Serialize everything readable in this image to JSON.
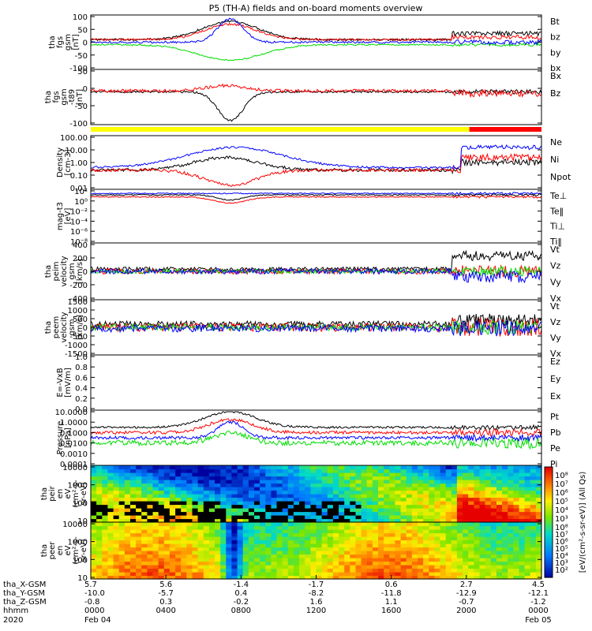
{
  "title": "P5 (TH-A) fields and on-board moments overview",
  "colors": {
    "black": "#000000",
    "red": "#ff0000",
    "green": "#00dd00",
    "blue": "#0000ff",
    "yellow": "#ffff00"
  },
  "bar_segments": [
    {
      "from": 0.0,
      "to": 0.84,
      "color": "#ffff00"
    },
    {
      "from": 0.84,
      "to": 1.0,
      "color": "#ff0000"
    }
  ],
  "chart_data": [
    {
      "type": "line",
      "ylabel": [
        "tha",
        "fgs",
        "gsm",
        "[nT]"
      ],
      "yticks": [
        "100",
        "50",
        "0",
        "-50",
        "-100"
      ],
      "legend": [
        {
          "name": "Bt",
          "color": "#000000"
        },
        {
          "name": "bz",
          "color": "#ff0000"
        },
        {
          "name": "by",
          "color": "#00dd00"
        },
        {
          "name": "bx",
          "color": "#0000ff"
        }
      ]
    },
    {
      "type": "line",
      "ylabel": [
        "tha",
        "fgs",
        "gsm",
        "-t89",
        "[nT]"
      ],
      "yticks": [
        "50",
        "0",
        "-50",
        "-100"
      ],
      "legend": [
        {
          "name": "Bx",
          "color": "#000000"
        },
        {
          "name": "Bz",
          "color": "#ff0000"
        }
      ]
    },
    {
      "type": "line",
      "ylabel": [
        "Density",
        "[cm-3]"
      ],
      "yticks": [
        "100.00",
        "10.00",
        "1.00",
        "0.10",
        "0.01"
      ],
      "legend": [
        {
          "name": "Ne",
          "color": "#ff0000"
        },
        {
          "name": "Ni",
          "color": "#000000"
        },
        {
          "name": "Npot",
          "color": "#0000ff"
        }
      ]
    },
    {
      "type": "line",
      "ylabel": [
        "mag-t3",
        "[eV]"
      ],
      "yticks": [
        "10²",
        "10⁰",
        "10⁻²",
        "10⁻⁴",
        "10⁻⁶",
        "10⁻⁸"
      ],
      "legend": [
        {
          "name": "Te⊥",
          "color": "#ff0000"
        },
        {
          "name": "Te‖",
          "color": "#000000"
        },
        {
          "name": "Ti⊥",
          "color": "#00dd00"
        },
        {
          "name": "Ti‖",
          "color": "#00dd00"
        }
      ]
    },
    {
      "type": "line",
      "ylabel": [
        "tha",
        "peim",
        "velocity",
        "gsm",
        "[km/s]"
      ],
      "yticks": [
        "400",
        "200",
        "0",
        "-200",
        "-400"
      ],
      "legend": [
        {
          "name": "Vt",
          "color": "#000000"
        },
        {
          "name": "Vz",
          "color": "#ff0000"
        },
        {
          "name": "Vy",
          "color": "#00dd00"
        },
        {
          "name": "Vx",
          "color": "#0000ff"
        }
      ]
    },
    {
      "type": "line",
      "ylabel": [
        "tha",
        "peem",
        "velocity",
        "gsm",
        "[km/s]"
      ],
      "yticks": [
        "1500",
        "1000",
        "500",
        "0",
        "-500",
        "-1000",
        "-1500"
      ],
      "legend": [
        {
          "name": "Vt",
          "color": "#000000"
        },
        {
          "name": "Vz",
          "color": "#ff0000"
        },
        {
          "name": "Vy",
          "color": "#00dd00"
        },
        {
          "name": "Vx",
          "color": "#0000ff"
        }
      ]
    },
    {
      "type": "line",
      "ylabel": [
        "E=-VxB",
        "[mV/m]"
      ],
      "yticks": [
        "1.0",
        "0.8",
        "0.6",
        "0.4",
        "0.2",
        "0.0"
      ],
      "legend": [
        {
          "name": "Ez",
          "color": "#ff0000"
        },
        {
          "name": "Ey",
          "color": "#00dd00"
        },
        {
          "name": "Ex",
          "color": "#0000ff"
        }
      ]
    },
    {
      "type": "line",
      "ylabel": [
        "Pressure",
        "[nPa]"
      ],
      "yticks": [
        "10.0000",
        "1.0000",
        "0.1000",
        "0.0100",
        "0.0010",
        "0.0001"
      ],
      "legend": [
        {
          "name": "Pt",
          "color": "#000000"
        },
        {
          "name": "Pb",
          "color": "#ff0000"
        },
        {
          "name": "Pe",
          "color": "#00dd00"
        },
        {
          "name": "Pi",
          "color": "#0000ff"
        }
      ]
    },
    {
      "type": "heatmap",
      "ylabel": [
        "tha",
        "peir",
        "en",
        "eV",
        "(cm²-s-",
        "sr-eV)"
      ],
      "yticks": [
        "10000",
        "1000",
        "100",
        "10"
      ]
    },
    {
      "type": "heatmap",
      "ylabel": [
        "tha",
        "peer",
        "en",
        "eV",
        "(cm²-s-",
        "sr-eV)"
      ],
      "yticks": [
        "10000",
        "1000",
        "100",
        "10"
      ]
    }
  ],
  "colorbar": {
    "label": "[eV/(cm²-s-sr-eV)] (All Qs)",
    "ticks_top": [
      "10⁸",
      "10⁷",
      "10⁶",
      "10⁵",
      "10⁴",
      "10³"
    ],
    "ticks_bottom": [
      "10⁸",
      "10⁷",
      "10⁶",
      "10⁵",
      "10⁴",
      "10³",
      "10²"
    ]
  },
  "xaxis": {
    "row_labels": [
      "tha_X-GSM",
      "tha_Y-GSM",
      "tha_Z-GSM",
      "hhmm",
      "2020"
    ],
    "ticks": [
      {
        "x": "5.7",
        "y": "-10.0",
        "z": "-0.8",
        "hhmm": "0000",
        "date": "Feb 04"
      },
      {
        "x": "5.6",
        "y": "-5.7",
        "z": "0.3",
        "hhmm": "0400",
        "date": ""
      },
      {
        "x": "-1.4",
        "y": "0.4",
        "z": "-0.2",
        "hhmm": "0800",
        "date": ""
      },
      {
        "x": "-1.7",
        "y": "-8.2",
        "z": "1.6",
        "hhmm": "1200",
        "date": ""
      },
      {
        "x": "0.6",
        "y": "-11.8",
        "z": "1.1",
        "hhmm": "1600",
        "date": ""
      },
      {
        "x": "2.7",
        "y": "-12.9",
        "z": "-0.7",
        "hhmm": "2000",
        "date": ""
      },
      {
        "x": "4.5",
        "y": "-12.1",
        "z": "-1.2",
        "hhmm": "0000",
        "date": "Feb 05"
      }
    ]
  }
}
